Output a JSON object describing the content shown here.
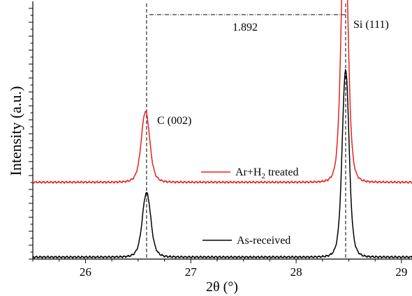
{
  "chart_data": {
    "type": "line",
    "title": "",
    "xlabel": "2θ (°)",
    "ylabel": "Intensity (a.u.)",
    "xlim": [
      25.5,
      29.1
    ],
    "ylim": [
      0,
      1
    ],
    "xticks": [
      26,
      27,
      28,
      29
    ],
    "y_tick_labels": false,
    "grid": false,
    "legend": "inline",
    "series": [
      {
        "name": "As-received",
        "color": "#000000",
        "baseline": 0.008,
        "peaks": [
          {
            "center": 26.58,
            "height": 0.255,
            "width": 0.055
          },
          {
            "center": 28.47,
            "height": 0.74,
            "width": 0.045
          }
        ]
      },
      {
        "name": "Ar+H₂ treated",
        "color": "#e8201e",
        "baseline": 0.305,
        "peaks": [
          {
            "center": 26.57,
            "height": 0.28,
            "width": 0.055
          },
          {
            "center": 28.46,
            "height": 1.04,
            "width": 0.045
          }
        ]
      }
    ],
    "vlines": [
      26.58,
      28.47
    ],
    "annotations": {
      "c_peak": "C (002)",
      "si_peak": "Si (111)",
      "spacing": "1.892",
      "series_1": "As-received",
      "series_2_main": "Ar+H",
      "series_2_sub": "2",
      "series_2_tail": " treated"
    }
  }
}
